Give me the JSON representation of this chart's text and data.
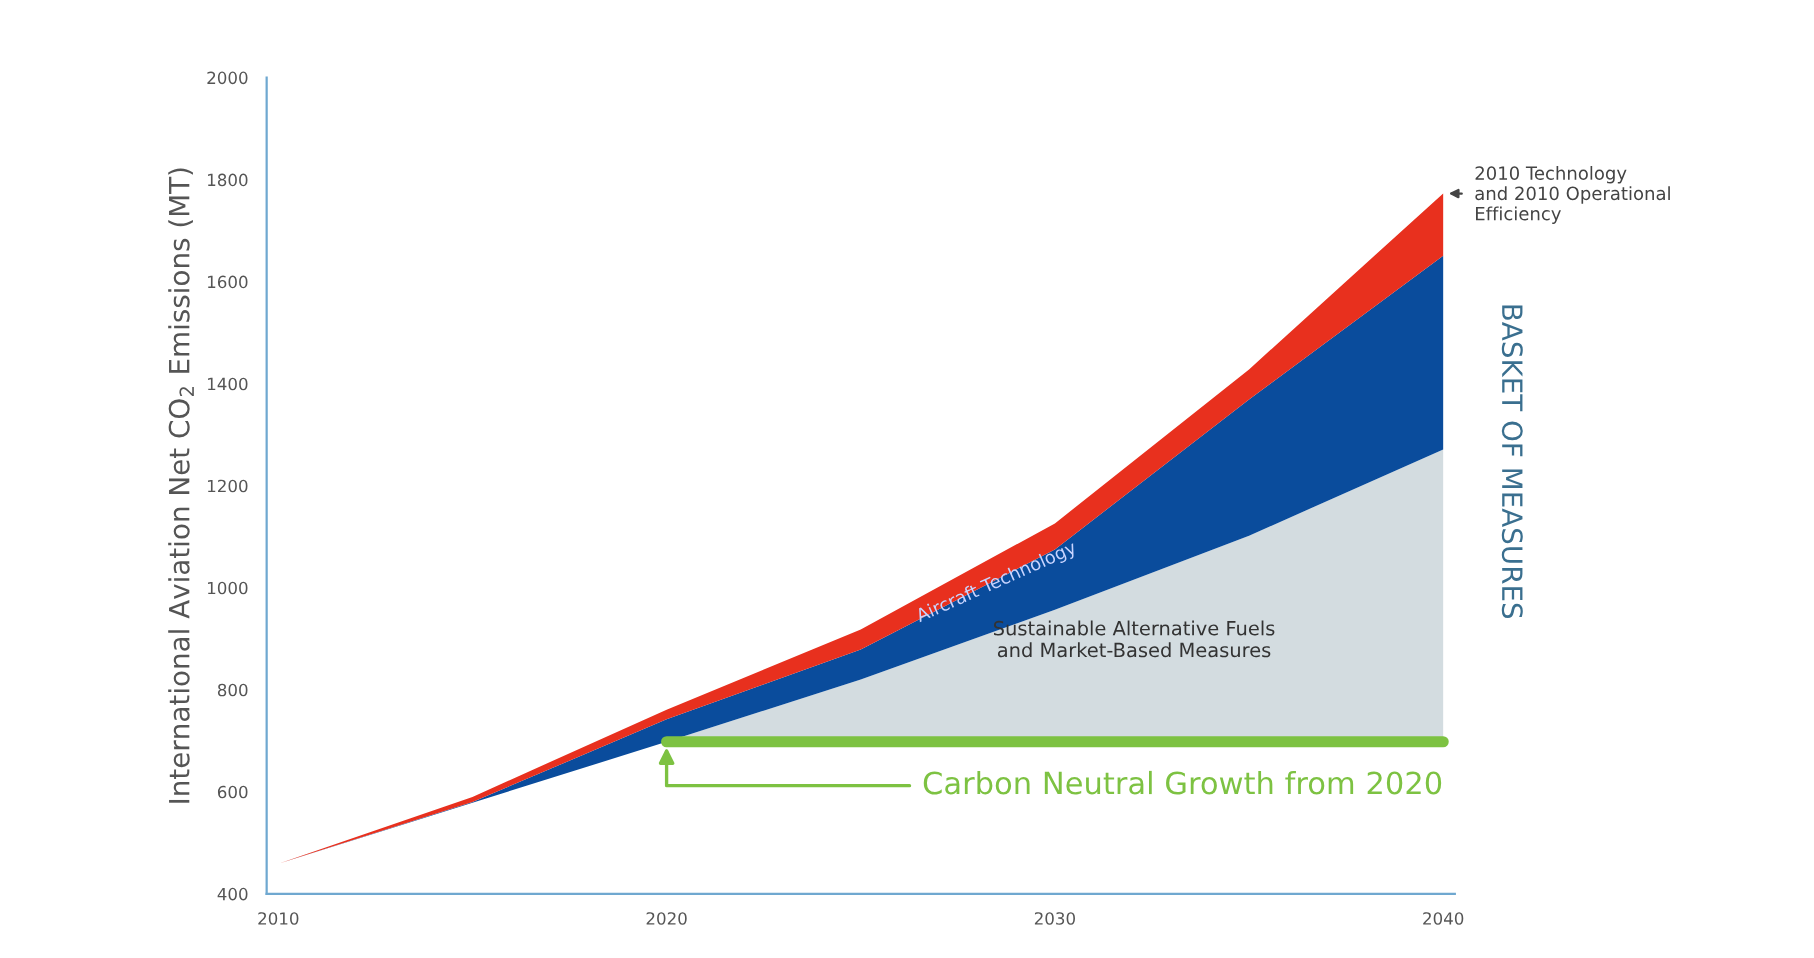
{
  "chart_data": {
    "type": "area",
    "ylabel": "International Aviation Net CO$_{2}$ Emissions (MT)",
    "xlim": [
      2009.7,
      2040.3
    ],
    "ylim": [
      400,
      2000
    ],
    "xticks": [
      2010,
      2020,
      2030,
      2040
    ],
    "yticks": [
      400,
      600,
      800,
      1000,
      1200,
      1400,
      1600,
      1800,
      2000
    ],
    "grid": false,
    "series": [
      {
        "type": "line",
        "color": "#7dc242",
        "x": [
          2020,
          2040
        ],
        "values": [
          698,
          698
        ]
      },
      {
        "color": "#d3dce0",
        "x": [
          2020,
          2025,
          2030,
          2035,
          2040
        ],
        "values": [
          698,
          820,
          957,
          1102,
          1271
        ]
      },
      {
        "color": "#0a4c9c",
        "x": [
          2010,
          2015,
          2020,
          2025,
          2030,
          2035,
          2040
        ],
        "values": [
          459,
          580,
          742,
          879,
          1075,
          1369,
          1651
        ]
      },
      {
        "color": "#e8301e",
        "x": [
          2010,
          2015,
          2020,
          2025,
          2030,
          2035,
          2040
        ],
        "values": [
          459,
          590,
          761,
          918,
          1126,
          1428,
          1773
        ]
      }
    ],
    "annotations": [
      {
        "text": "Carbon Neutral Growth from 2020",
        "x": 2020,
        "y": 698
      },
      {
        "text": "2010 Technology\nand 2010 Operational\nEfficiency",
        "x": 2040,
        "y": 1773
      },
      {
        "text": "Aircraft Technology",
        "x": 2028.5,
        "y": 1010
      },
      "Sustainable Alternative Fuels\nand Market-Based Measures",
      "BASKET OF MEASURES"
    ]
  }
}
